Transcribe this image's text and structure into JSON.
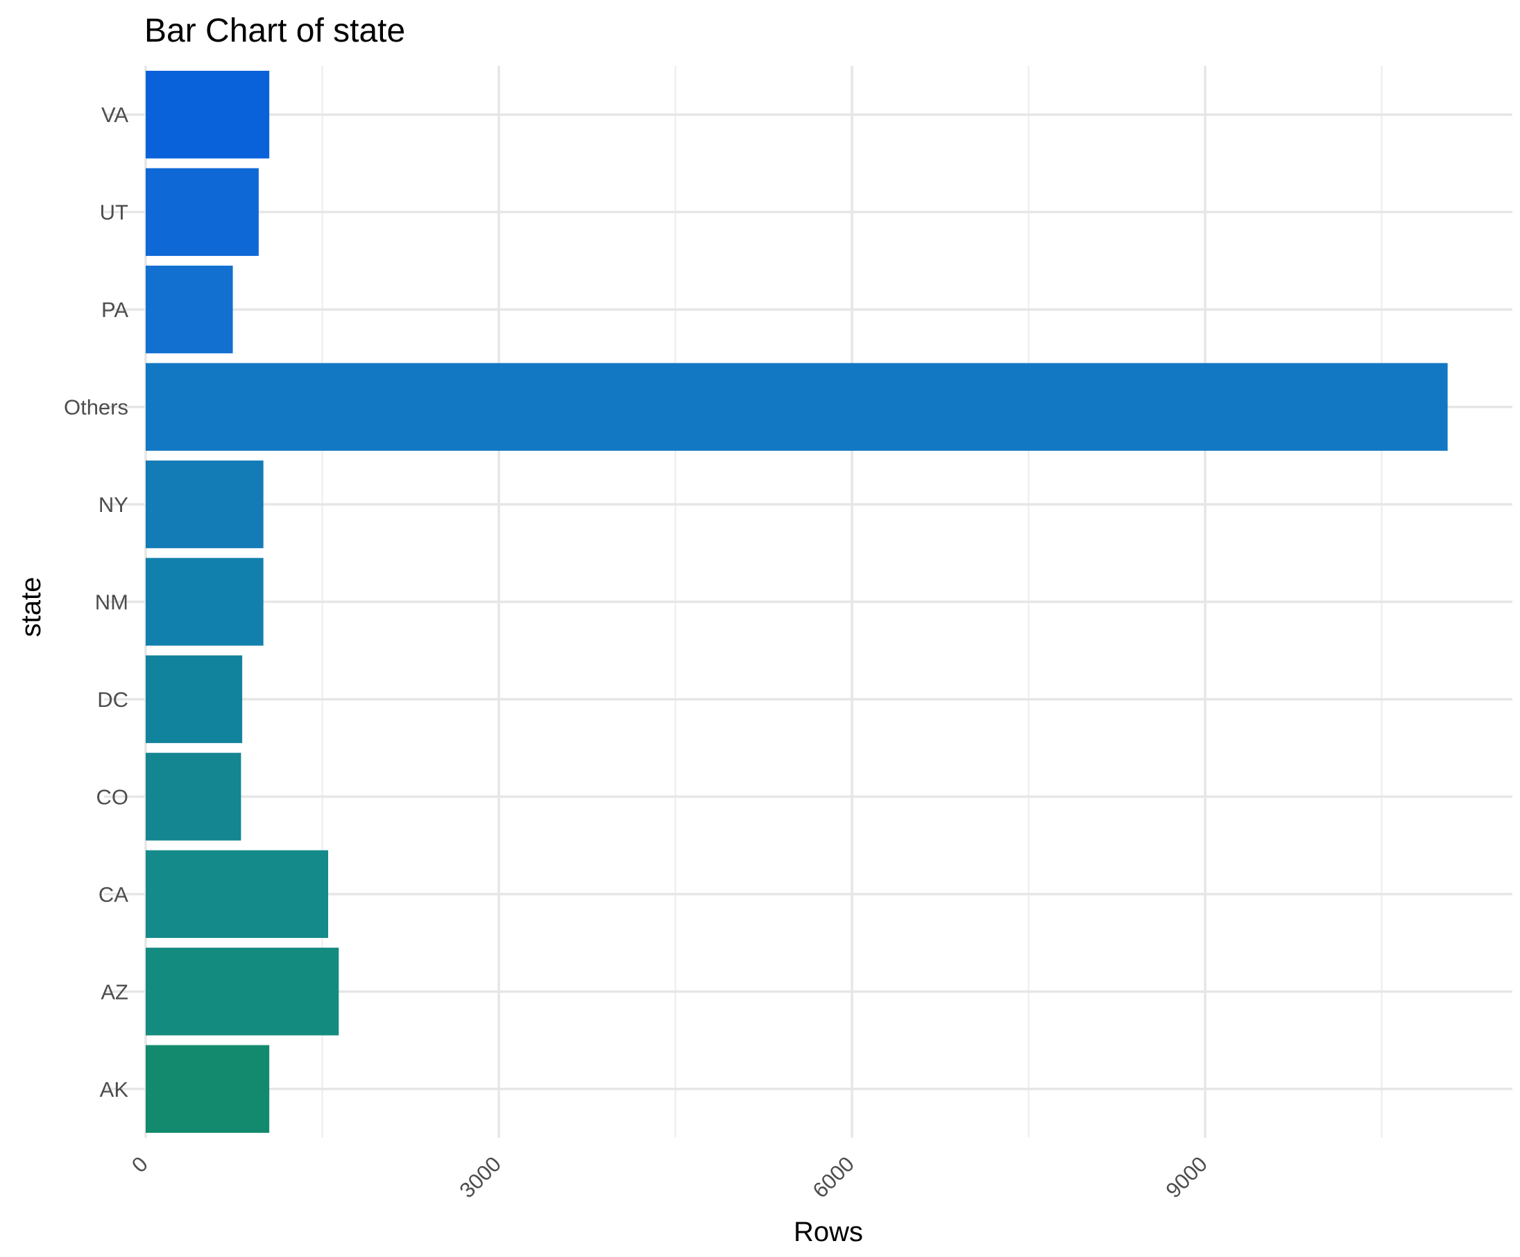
{
  "chart_data": {
    "type": "bar",
    "orientation": "horizontal",
    "title": "Bar Chart of state",
    "xlabel": "Rows",
    "ylabel": "state",
    "categories": [
      "AK",
      "AZ",
      "CA",
      "CO",
      "DC",
      "NM",
      "NY",
      "Others",
      "PA",
      "UT",
      "VA"
    ],
    "values": [
      1050,
      1640,
      1550,
      810,
      820,
      1000,
      1000,
      11060,
      740,
      960,
      1050
    ],
    "xlim": [
      0,
      11610
    ],
    "xticks": [
      0,
      3000,
      6000,
      9000
    ],
    "xtick_labels": [
      "0",
      "3000",
      "6000",
      "9000"
    ],
    "grid": true,
    "legend": "none",
    "bar_colors": [
      "#138A6D",
      "#148B7F",
      "#158A8A",
      "#138691",
      "#12839C",
      "#1280AC",
      "#137BB6",
      "#1278C4",
      "#1170D0",
      "#0E68D6",
      "#0A62DB"
    ]
  }
}
